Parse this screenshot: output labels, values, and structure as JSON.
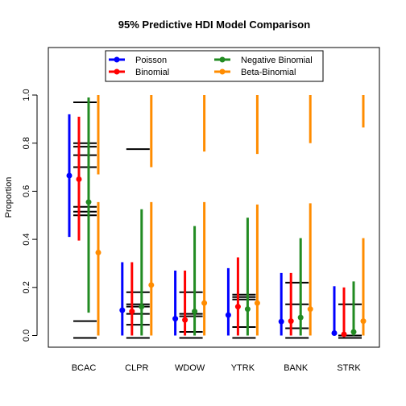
{
  "chart_data": {
    "type": "interval",
    "title": "95% Predictive HDI Model Comparison",
    "xlabel": "",
    "ylabel": "Proportion",
    "ylim": [
      -0.05,
      1.1
    ],
    "yticks": [
      "0.0",
      "0.2",
      "0.4",
      "0.6",
      "0.8",
      "1.0"
    ],
    "categories": [
      "BCAC",
      "CLPR",
      "WDOW",
      "YTRK",
      "BANK",
      "STRK"
    ],
    "legend_position": "top-center",
    "observed_lines": [
      [
        0.06,
        0.5,
        0.515,
        0.535,
        0.7,
        0.75,
        0.785,
        0.8,
        0.97,
        -0.01
      ],
      [
        -0.01,
        0.045,
        0.09,
        0.12,
        0.13,
        0.18,
        0.775
      ],
      [
        -0.01,
        0.015,
        0.08,
        0.09,
        0.18
      ],
      [
        -0.01,
        0.035,
        0.15,
        0.16,
        0.17
      ],
      [
        -0.01,
        0.03,
        0.13,
        0.22
      ],
      [
        -0.01,
        0.0,
        0.13
      ]
    ],
    "series": [
      {
        "name": "Poisson",
        "color": "#0000FF",
        "means": [
          0.665,
          0.105,
          0.07,
          0.085,
          0.058,
          0.01
        ],
        "lower": [
          0.41,
          0.0,
          0.0,
          0.0,
          0.0,
          0.0
        ],
        "upper": [
          0.92,
          0.305,
          0.27,
          0.28,
          0.26,
          0.205
        ]
      },
      {
        "name": "Binomial",
        "color": "#FF0000",
        "means": [
          0.65,
          0.1,
          0.065,
          0.12,
          0.06,
          0.005
        ],
        "lower": [
          0.395,
          0.0,
          0.0,
          0.0,
          0.0,
          0.0
        ],
        "upper": [
          0.91,
          0.305,
          0.27,
          0.325,
          0.26,
          0.2
        ]
      },
      {
        "name": "Negative Binomial",
        "color": "#228B22",
        "means": [
          0.555,
          0.12,
          0.1,
          0.11,
          0.075,
          0.015
        ],
        "lower": [
          0.095,
          0.0,
          0.0,
          0.0,
          0.0,
          0.0
        ],
        "upper": [
          0.99,
          0.525,
          0.455,
          0.49,
          0.405,
          0.225
        ]
      },
      {
        "name": "Beta-Binomial",
        "color": "#FF8C00",
        "means": [
          0.345,
          0.21,
          0.135,
          0.135,
          0.11,
          0.06
        ],
        "lower": [
          0.0,
          0.0,
          0.0,
          0.0,
          0.0,
          0.0
        ],
        "upper": [
          1.0,
          1.0,
          1.0,
          1.0,
          1.0,
          1.0
        ],
        "gap_bottom": [
          0.555,
          0.555,
          0.555,
          0.545,
          0.55,
          0.405
        ],
        "gap_top": [
          0.67,
          0.7,
          0.765,
          0.755,
          0.8,
          0.865
        ]
      }
    ]
  }
}
